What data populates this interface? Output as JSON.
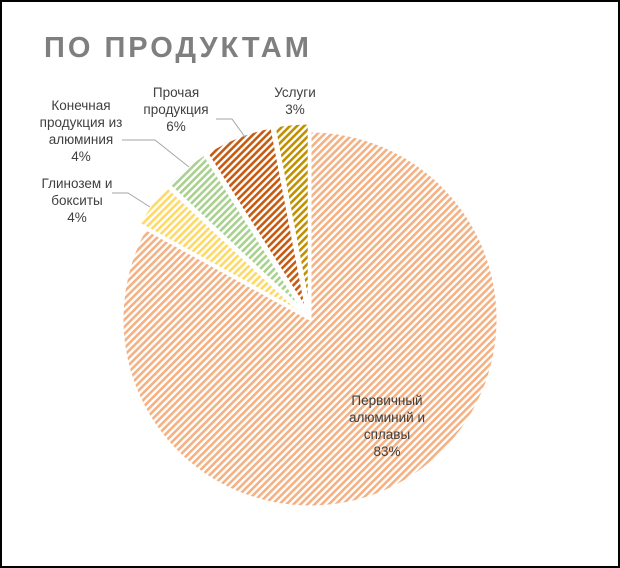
{
  "title": "ПО ПРОДУКТАМ",
  "chart_data": {
    "type": "pie",
    "title": "ПО ПРОДУКТАМ",
    "slices": [
      {
        "label": "Первичный алюминий и сплавы",
        "label_lines": [
          "Первичный",
          "алюминий и",
          "сплавы"
        ],
        "value": 83,
        "value_label": "83%",
        "color": "#f4b183"
      },
      {
        "label": "Глинозем и бокситы",
        "label_lines": [
          "Глинозем и",
          "бокситы"
        ],
        "value": 4,
        "value_label": "4%",
        "color": "#ffd966"
      },
      {
        "label": "Конечная продукция из алюминия",
        "label_lines": [
          "Конечная",
          "продукция из",
          "алюминия"
        ],
        "value": 4,
        "value_label": "4%",
        "color": "#a9d18e"
      },
      {
        "label": "Прочая продукция",
        "label_lines": [
          "Прочая",
          "продукция"
        ],
        "value": 6,
        "value_label": "6%",
        "color": "#c55a11"
      },
      {
        "label": "Услуги",
        "label_lines": [
          "Услуги"
        ],
        "value": 3,
        "value_label": "3%",
        "color": "#bf9000"
      }
    ],
    "pattern": "diagonal-hatch",
    "legend": "none",
    "data_labels": "outside-with-leader-lines"
  }
}
